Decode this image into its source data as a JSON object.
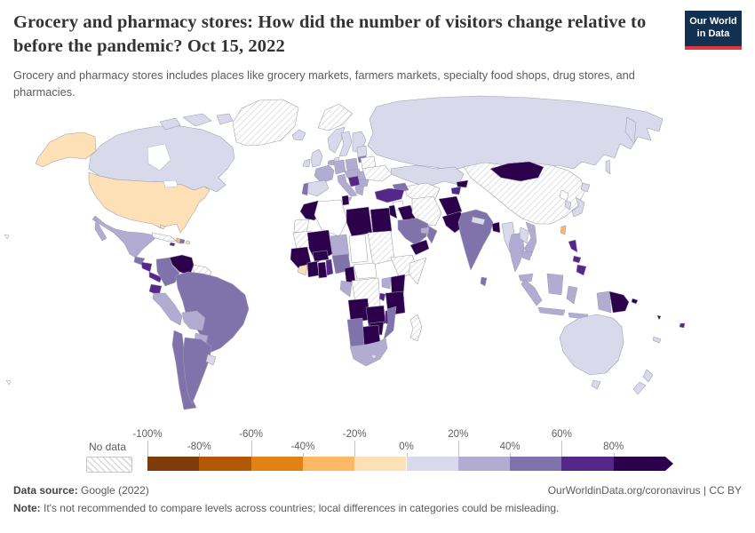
{
  "header": {
    "title": "Grocery and pharmacy stores: How did the number of visitors change relative to before the pandemic? Oct 15, 2022",
    "subtitle": "Grocery and pharmacy stores includes places like grocery markets, farmers markets, specialty food shops, drug stores, and pharmacies.",
    "logo_line1": "Our World",
    "logo_line2": "in Data",
    "logo_bg": "#12304f",
    "logo_stripe": "#e0373f"
  },
  "legend": {
    "no_data_label": "No data",
    "tick_labels": [
      "-100%",
      "-80%",
      "-60%",
      "-40%",
      "-20%",
      "0%",
      "20%",
      "40%",
      "60%",
      "80%"
    ],
    "segment_colors": [
      "#7f3b08",
      "#b35806",
      "#e08214",
      "#fdb863",
      "#fee0b6",
      "#d8daeb",
      "#b2abd2",
      "#8073ac",
      "#542788",
      "#2d004b"
    ]
  },
  "footer": {
    "source_label": "Data source:",
    "source_value": " Google (2022)",
    "credit": "OurWorldinData.org/coronavirus | CC BY",
    "note_label": "Note:",
    "note_value": " It's not recommended to compare levels across countries; local differences in categories could be misleading."
  },
  "chart_data": {
    "type": "choropleth",
    "title": "Grocery and pharmacy stores: change in visitors relative to before the pandemic",
    "date": "Oct 15, 2022",
    "unit": "%",
    "legend_position": "bottom",
    "buckets": [
      "-100 to -80",
      "-80 to -60",
      "-60 to -40",
      "-40 to -20",
      "-20 to 0",
      "0 to 20",
      "20 to 40",
      "40 to 60",
      "60 to 80",
      "80 to 100",
      "no data",
      "no data (plain)"
    ],
    "bucket_colors": {
      "-100 to -80": "#7f3b08",
      "-80 to -60": "#b35806",
      "-60 to -40": "#e08214",
      "-40 to -20": "#fdb863",
      "-20 to 0": "#fee0b6",
      "0 to 20": "#d8daeb",
      "20 to 40": "#b2abd2",
      "40 to 60": "#8073ac",
      "60 to 80": "#542788",
      "80 to 100": "#2d004b",
      "no data": "hatch",
      "no data (plain)": "#ffffff"
    },
    "entities": {
      "greenland": "no data",
      "iceland": "0 to 20",
      "svalbard": "no data",
      "canada": "0 to 20",
      "alaska": "-20 to 0",
      "united-states": "-20 to 0",
      "mexico": "20 to 40",
      "baja": "20 to 40",
      "guatemala": "40 to 60",
      "nicaragua": "60 to 80",
      "panama-cr": "60 to 80",
      "cuba": "no data",
      "jamaica": "60 to 80",
      "haiti": "-40 to -20",
      "dominican-republic": "40 to 60",
      "puerto-rico": "-20 to 0",
      "bahamas": "-20 to 0",
      "venezuela": "80 to 100",
      "colombia": "40 to 60",
      "guyanas": "no data",
      "ecuador": "60 to 80",
      "peru": "20 to 40",
      "brazil": "40 to 60",
      "bolivia": "20 to 40",
      "paraguay": "20 to 40",
      "chile": "40 to 60",
      "argentina": "40 to 60",
      "uruguay": "0 to 20",
      "united-kingdom": "0 to 20",
      "ireland": "0 to 20",
      "norway": "0 to 20",
      "sweden": "0 to 20",
      "finland": "0 to 20",
      "denmark": "0 to 20",
      "benelux": "20 to 40",
      "germany": "20 to 40",
      "poland": "20 to 40",
      "france": "20 to 40",
      "spain": "0 to 20",
      "portugal": "40 to 60",
      "italy": "20 to 40",
      "central-europe": "20 to 40",
      "croatia-serbia": "60 to 80",
      "greece": "20 to 40",
      "romania": "20 to 40",
      "bulgaria": "20 to 40",
      "lithuania": "40 to 60",
      "latvia-estonia": "0 to 20",
      "belarus": "no data",
      "ukraine": "no data",
      "russia": "0 to 20",
      "kazakhstan": "0 to 20",
      "central-asia": "no data",
      "kyrgyzstan": "80 to 100",
      "tajikistan": "60 to 80",
      "caucasus": "40 to 60",
      "turkey": "60 to 80",
      "syria": "no data (plain)",
      "iraq": "80 to 100",
      "iran": "no data",
      "israel-jordan": "80 to 100",
      "kuwait": "80 to 100",
      "saudi-arabia": "40 to 60",
      "yemen": "80 to 100",
      "oman": "40 to 60",
      "uae": "20 to 40",
      "afghanistan": "80 to 100",
      "pakistan": "80 to 100",
      "india": "40 to 60",
      "nepal": "0 to 20",
      "bangladesh": "80 to 100",
      "sri-lanka": "40 to 60",
      "china": "no data",
      "mongolia": "80 to 100",
      "myanmar": "0 to 20",
      "thailand": "20 to 40",
      "laos": "0 to 20",
      "vietnam": "20 to 40",
      "cambodia": "20 to 40",
      "malaysia": "20 to 40",
      "indonesia": "20 to 40",
      "indonesian-papua": "20 to 40",
      "papua-new-guinea": "80 to 100",
      "philippines": "60 to 80",
      "taiwan": "-40 to -20",
      "japan": "0 to 20",
      "south-korea": "0 to 20",
      "north-korea": "no data (plain)",
      "fiji": "60 to 80",
      "solomon-islands": "80 to 100",
      "vanuatu": "80 to 100",
      "new-caledonia": "0 to 20",
      "australia": "0 to 20",
      "new-zealand": "0 to 20",
      "morocco": "80 to 100",
      "western-sahara": "no data",
      "mauritania": "no data",
      "algeria": "no data (plain)",
      "tunisia": "80 to 100",
      "libya": "80 to 100",
      "egypt": "80 to 100",
      "mali": "80 to 100",
      "niger": "20 to 40",
      "chad": "no data (plain)",
      "sudan": "no data",
      "senegal-guinea": "80 to 100",
      "liberia-sl": "-20 to 0",
      "cote-divoire": "80 to 100",
      "burkina-faso": "80 to 100",
      "ghana": "80 to 100",
      "togo-benin": "60 to 80",
      "nigeria": "40 to 60",
      "cameroon": "80 to 100",
      "central-african-republic": "no data (plain)",
      "ethiopia": "no data",
      "somalia": "no data",
      "kenya": "80 to 100",
      "uganda": "20 to 40",
      "dr-congo": "no data",
      "gabon-congo": "20 to 40",
      "rwanda-burundi": "60 to 80",
      "tanzania": "80 to 100",
      "angola": "80 to 100",
      "zambia": "80 to 100",
      "malawi": "60 to 80",
      "mozambique": "40 to 60",
      "zimbabwe": "80 to 100",
      "botswana": "80 to 100",
      "namibia": "40 to 60",
      "south-africa": "20 to 40",
      "lesotho": "0 to 20",
      "madagascar": "no data",
      "pacific-islands": "no data (plain)"
    }
  }
}
